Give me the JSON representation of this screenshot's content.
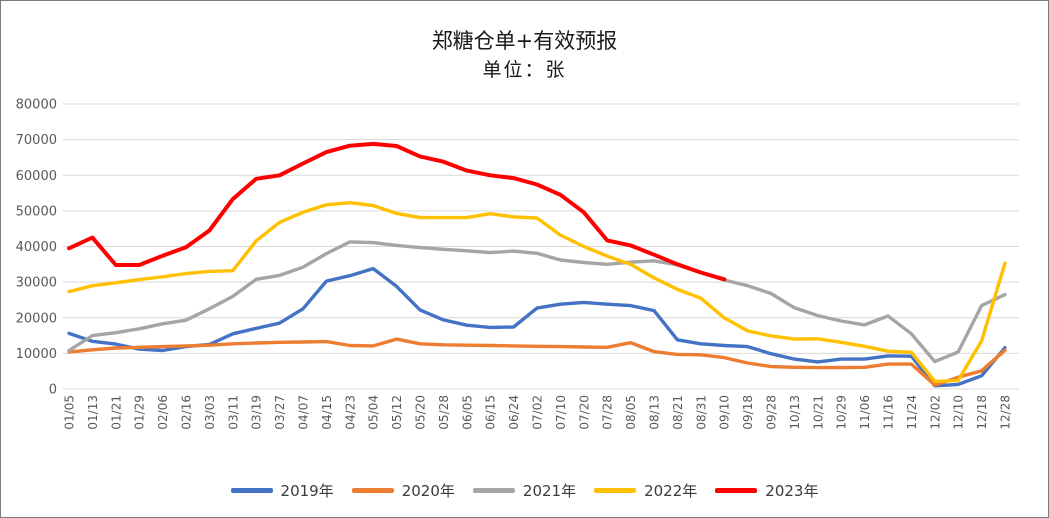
{
  "title": "郑糖仓单+有效预报",
  "subtitle": "单位：张",
  "chart_data": {
    "type": "line",
    "title": "郑糖仓单+有效预报",
    "subtitle": "单位：张",
    "unit": "张",
    "xlabel": "",
    "ylabel": "",
    "ylim": [
      0,
      80000
    ],
    "y_ticks": [
      0,
      10000,
      20000,
      30000,
      40000,
      50000,
      60000,
      70000,
      80000
    ],
    "grid": "horizontal",
    "gridline_color": "#d9d9d9",
    "axis_text_color": "#595959",
    "legend_position": "bottom",
    "categories": [
      "01/05",
      "01/13",
      "01/21",
      "01/29",
      "02/06",
      "02/16",
      "03/03",
      "03/11",
      "03/19",
      "03/27",
      "04/07",
      "04/15",
      "04/23",
      "05/04",
      "05/12",
      "05/20",
      "05/28",
      "06/05",
      "06/15",
      "06/24",
      "07/02",
      "07/10",
      "07/20",
      "07/28",
      "08/05",
      "08/13",
      "08/21",
      "08/31",
      "09/10",
      "09/18",
      "09/28",
      "10/13",
      "10/21",
      "10/29",
      "11/06",
      "11/16",
      "11/24",
      "12/02",
      "12/10",
      "12/18",
      "12/28"
    ],
    "series": [
      {
        "name": "2019年",
        "color": "#4472C4",
        "values": [
          15600,
          13400,
          12600,
          11200,
          10800,
          11900,
          12500,
          15500,
          17000,
          18500,
          22500,
          30300,
          31800,
          33800,
          28800,
          22200,
          19400,
          17900,
          17300,
          17400,
          22700,
          23800,
          24300,
          23800,
          23400,
          22000,
          13800,
          12700,
          12200,
          11900,
          9900,
          8400,
          7600,
          8400,
          8400,
          9300,
          9200,
          900,
          1300,
          3700,
          11600
        ]
      },
      {
        "name": "2020年",
        "color": "#ED7D31",
        "values": [
          10400,
          11000,
          11500,
          11700,
          11900,
          12100,
          12300,
          12700,
          12900,
          13100,
          13200,
          13300,
          12200,
          12100,
          14000,
          12700,
          12400,
          12300,
          12200,
          12100,
          12000,
          11900,
          11800,
          11700,
          13000,
          10500,
          9700,
          9600,
          8800,
          7300,
          6300,
          6100,
          6000,
          6000,
          6100,
          7000,
          7000,
          1100,
          3300,
          5100,
          10900
        ]
      },
      {
        "name": "2021年",
        "color": "#A5A5A5",
        "values": [
          10800,
          15000,
          15800,
          16900,
          18300,
          19300,
          22500,
          26000,
          30800,
          31900,
          34200,
          38000,
          41300,
          41100,
          40300,
          39700,
          39200,
          38800,
          38300,
          38700,
          38100,
          36200,
          35500,
          35000,
          35600,
          36000,
          34800,
          32700,
          30600,
          29000,
          26800,
          22800,
          20600,
          19100,
          18000,
          20500,
          15500,
          7700,
          10400,
          23400,
          26500
        ]
      },
      {
        "name": "2022年",
        "color": "#FFC000",
        "values": [
          27300,
          29000,
          29800,
          30700,
          31500,
          32400,
          33000,
          33200,
          41600,
          46800,
          49600,
          51700,
          52300,
          51500,
          49300,
          48100,
          48100,
          48100,
          49200,
          48300,
          48000,
          43200,
          40000,
          37300,
          35000,
          31200,
          28000,
          25500,
          20000,
          16300,
          14900,
          14000,
          14100,
          13100,
          12000,
          10600,
          10300,
          2100,
          2400,
          13500,
          35300
        ]
      },
      {
        "name": "2023年",
        "color": "#FF0000",
        "values": [
          39500,
          42500,
          34800,
          34800,
          37400,
          39800,
          44500,
          53300,
          59000,
          60000,
          63300,
          66500,
          68300,
          68800,
          68200,
          65300,
          63800,
          61300,
          60000,
          59200,
          57400,
          54500,
          49600,
          41700,
          40300,
          37700,
          35000,
          32700,
          30800,
          null,
          null,
          null,
          null,
          null,
          null,
          null,
          null,
          null,
          null,
          null,
          null
        ]
      }
    ]
  }
}
